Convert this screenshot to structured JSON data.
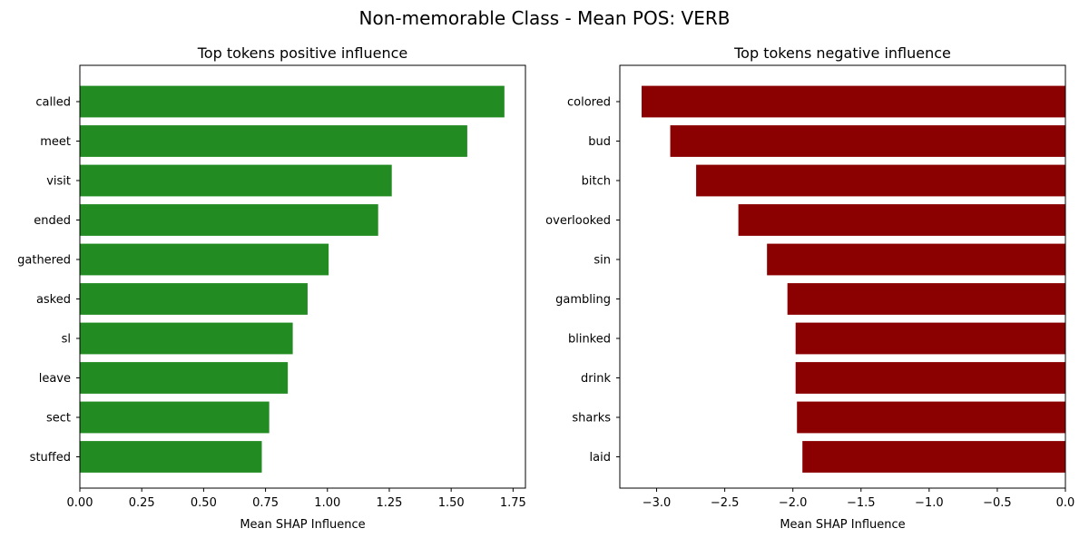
{
  "figure": {
    "title": "Non-memorable Class - Mean POS: VERB"
  },
  "chart_data": [
    {
      "type": "bar",
      "orientation": "horizontal",
      "title": "Top tokens positive influence",
      "xlabel": "Mean SHAP Influence",
      "ylabel": "",
      "categories": [
        "called",
        "meet",
        "visit",
        "ended",
        "gathered",
        "asked",
        "sl",
        "leave",
        "sect",
        "stuffed"
      ],
      "values": [
        1.715,
        1.565,
        1.26,
        1.205,
        1.005,
        0.92,
        0.86,
        0.84,
        0.765,
        0.735
      ],
      "xlim": [
        0,
        1.8
      ],
      "xticks": [
        0.0,
        0.25,
        0.5,
        0.75,
        1.0,
        1.25,
        1.5,
        1.75
      ],
      "xtick_labels": [
        "0.00",
        "0.25",
        "0.50",
        "0.75",
        "1.00",
        "1.25",
        "1.50",
        "1.75"
      ],
      "bar_color": "#228b22",
      "grid": false
    },
    {
      "type": "bar",
      "orientation": "horizontal",
      "title": "Top tokens negative influence",
      "xlabel": "Mean SHAP Influence",
      "ylabel": "",
      "categories": [
        "colored",
        "bud",
        "bitch",
        "overlooked",
        "sin",
        "gambling",
        "blinked",
        "drink",
        "sharks",
        "laid"
      ],
      "values": [
        -3.11,
        -2.9,
        -2.71,
        -2.4,
        -2.19,
        -2.04,
        -1.98,
        -1.98,
        -1.97,
        -1.93
      ],
      "xlim": [
        -3.27,
        0
      ],
      "xticks": [
        -3.0,
        -2.5,
        -2.0,
        -1.5,
        -1.0,
        -0.5,
        0.0
      ],
      "xtick_labels": [
        "−3.0",
        "−2.5",
        "−2.0",
        "−1.5",
        "−1.0",
        "−0.5",
        "0.0"
      ],
      "bar_color": "#8b0000",
      "grid": false
    }
  ]
}
